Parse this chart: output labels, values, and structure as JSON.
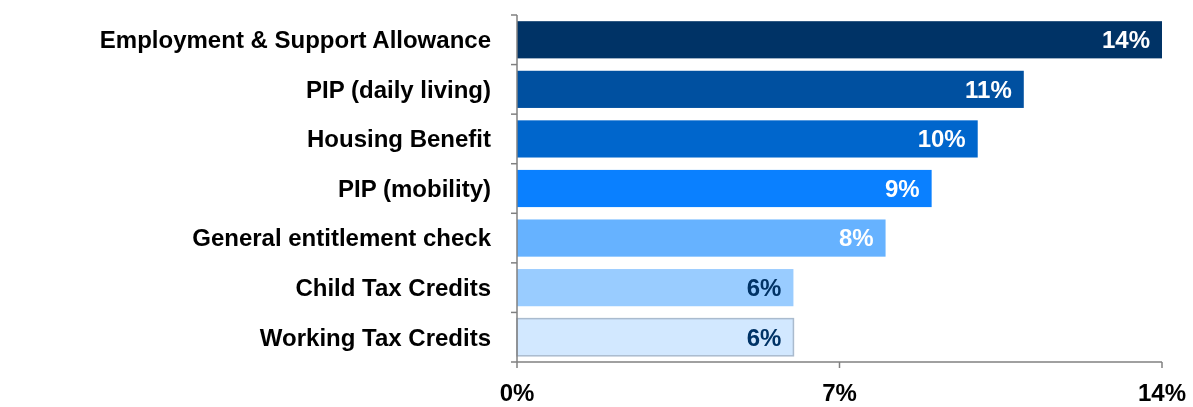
{
  "chart_data": {
    "type": "bar",
    "orientation": "horizontal",
    "categories": [
      "Employment & Support Allowance",
      "PIP (daily living)",
      "Housing Benefit",
      "PIP (mobility)",
      "General entitlement check",
      "Child Tax Credits",
      "Working Tax Credits"
    ],
    "values": [
      14,
      11,
      10,
      9,
      8,
      6,
      6
    ],
    "colors": [
      "#003366",
      "#0050a0",
      "#0066cc",
      "#0a80ff",
      "#66b2ff",
      "#99ccff",
      "#d2e8ff"
    ],
    "value_labels": [
      "14%",
      "11%",
      "10%",
      "9%",
      "8%",
      "6%",
      "6%"
    ],
    "xlim": [
      0,
      14
    ],
    "xticks": [
      {
        "value": 0,
        "label": "0%"
      },
      {
        "value": 7,
        "label": "7%"
      },
      {
        "value": 14,
        "label": "14%"
      }
    ],
    "grid": false
  }
}
